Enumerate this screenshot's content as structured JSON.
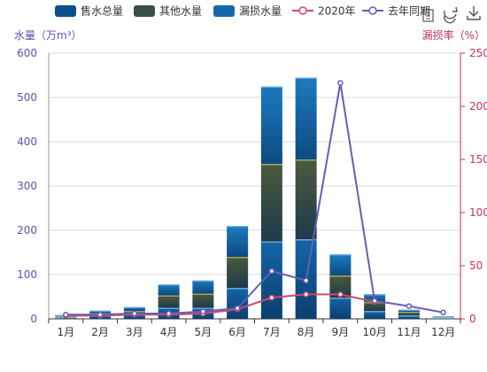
{
  "chart_data": {
    "type": "bar",
    "categories": [
      "1月",
      "2月",
      "3月",
      "4月",
      "5月",
      "6月",
      "7月",
      "8月",
      "9月",
      "10月",
      "11月",
      "12月"
    ],
    "series": [
      {
        "name": "售水总量",
        "kind": "bar",
        "axis": "left",
        "values": [
          4,
          8,
          10,
          25,
          25,
          70,
          175,
          180,
          48,
          18,
          8,
          3
        ]
      },
      {
        "name": "其他水量",
        "kind": "bar",
        "axis": "left",
        "values": [
          2,
          5,
          8,
          28,
          32,
          70,
          175,
          180,
          50,
          20,
          8,
          2
        ]
      },
      {
        "name": "漏损水量",
        "kind": "bar",
        "axis": "left",
        "values": [
          3,
          6,
          9,
          25,
          30,
          70,
          175,
          185,
          48,
          18,
          5,
          1
        ]
      },
      {
        "name": "2020年",
        "kind": "line",
        "axis": "right",
        "values": [
          3,
          3,
          4,
          4,
          5,
          9,
          20,
          23,
          23,
          16,
          null,
          null
        ]
      },
      {
        "name": "去年同期",
        "kind": "line",
        "axis": "right",
        "values": [
          4,
          4,
          5,
          5,
          7,
          10,
          45,
          36,
          222,
          17,
          12,
          6
        ]
      }
    ],
    "ylabel_left": "水量（万m³）",
    "ylabel_right": "漏损率（%）",
    "ylim_left": [
      0,
      600
    ],
    "ylim_right": [
      0,
      250
    ],
    "yticks_left": [
      0,
      100,
      200,
      300,
      400,
      500,
      600
    ],
    "yticks_right": [
      0,
      50,
      100,
      150,
      200,
      250
    ],
    "grid": true,
    "legend_position": "top"
  },
  "colors": {
    "sold": "#0d4f8a",
    "other": "#3a4e48",
    "leak": "#1667a8",
    "line2020": "#d04a6e",
    "lineLastYear": "#6a5bb8",
    "leftAxis": "#5b52b5",
    "rightAxis": "#c83253",
    "grid": "#d9d9d9"
  },
  "toolbox": {
    "items": [
      "data-view-icon",
      "restore-icon",
      "download-icon"
    ]
  }
}
